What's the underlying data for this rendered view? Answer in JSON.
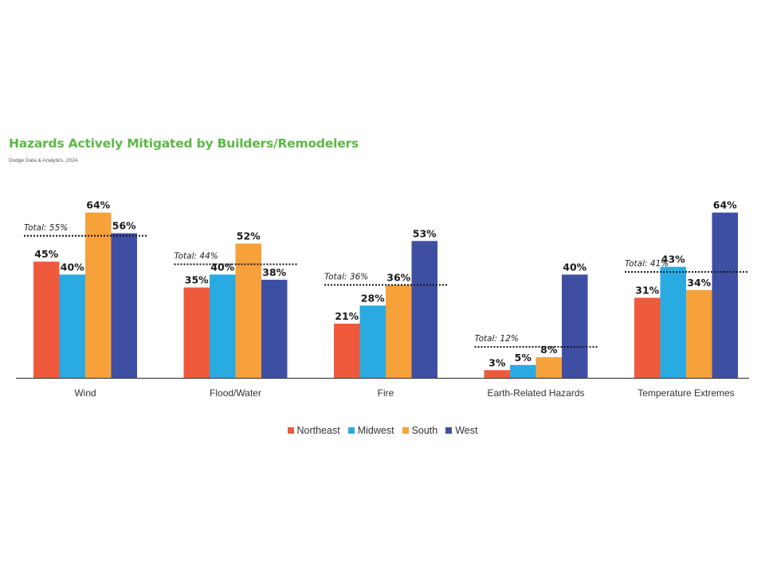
{
  "chart_data": {
    "type": "bar",
    "title": "Hazards Actively Mitigated by Builders/Remodelers",
    "subtitle": "Dodge Data & Analytics, 2024",
    "categories": [
      "Wind",
      "Flood/Water",
      "Fire",
      "Earth-Related Hazards",
      "Temperature Extremes"
    ],
    "series": [
      {
        "name": "Northeast",
        "color": "#f05a3c",
        "values": [
          45,
          35,
          21,
          3,
          31
        ],
        "labels": [
          "45%",
          "35%",
          "21%",
          "3%",
          "31%"
        ]
      },
      {
        "name": "Midwest",
        "color": "#29abe2",
        "values": [
          40,
          40,
          28,
          5,
          43
        ],
        "labels": [
          "40%",
          "40%",
          "28%",
          "5%",
          "43%"
        ]
      },
      {
        "name": "South",
        "color": "#f7a13b",
        "values": [
          64,
          52,
          36,
          8,
          34
        ],
        "labels": [
          "64%",
          "52%",
          "36%",
          "8%",
          "34%"
        ]
      },
      {
        "name": "West",
        "color": "#3e4fa3",
        "values": [
          56,
          38,
          53,
          40,
          64
        ],
        "labels": [
          "56%",
          "38%",
          "53%",
          "40%",
          "64%"
        ]
      }
    ],
    "totals": {
      "values": [
        55,
        44,
        36,
        12,
        41
      ],
      "labels": [
        "Total: 55%",
        "Total: 44%",
        "Total: 36%",
        "Total: 12%",
        "Total: 41%"
      ]
    },
    "ylim": [
      0,
      100
    ],
    "grid": false,
    "legend_position": "bottom"
  }
}
